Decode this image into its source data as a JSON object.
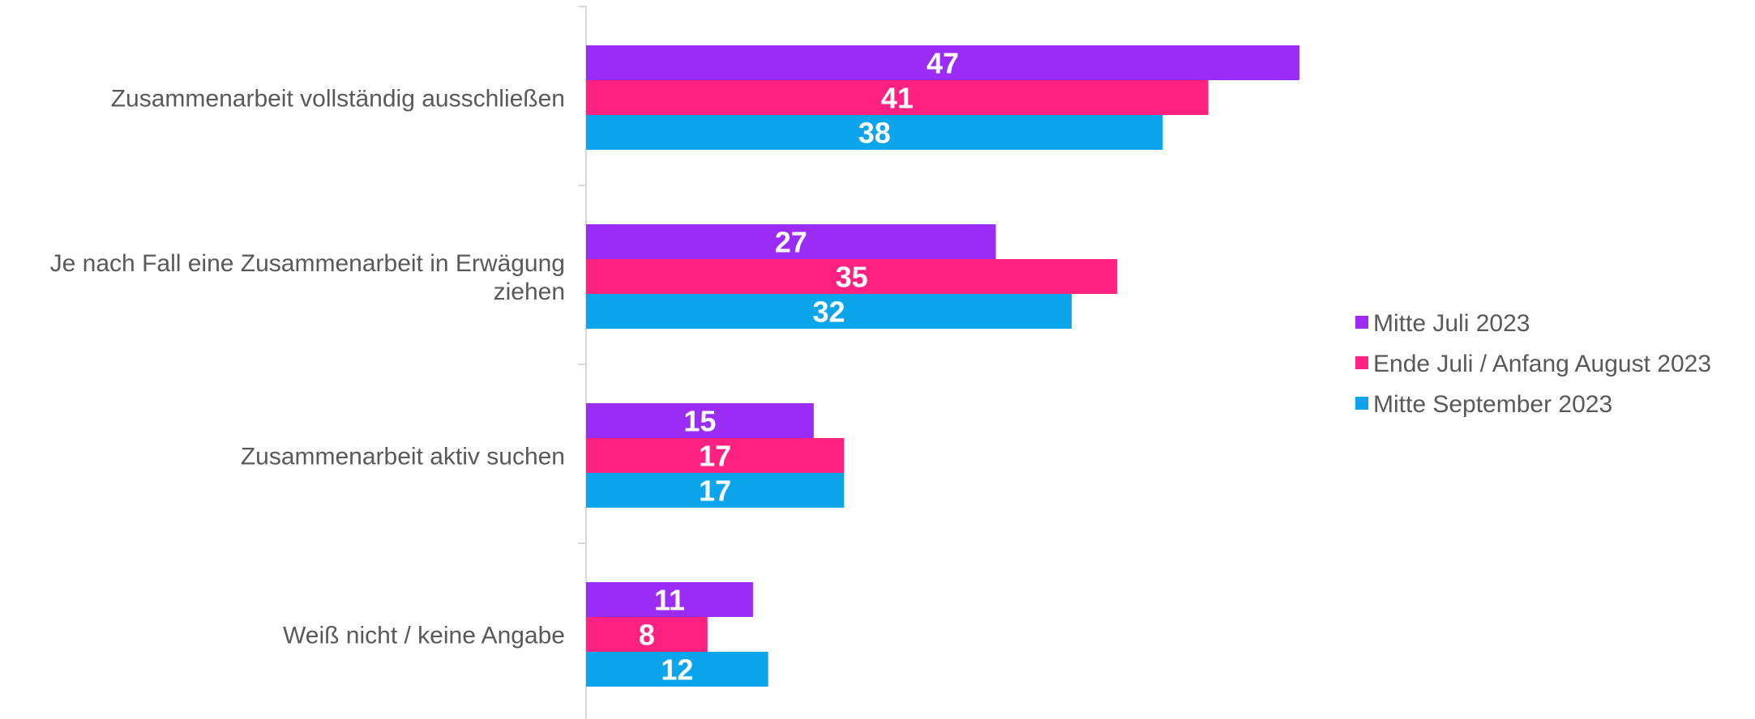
{
  "chart_data": {
    "type": "bar",
    "orientation": "horizontal",
    "categories": [
      [
        "Zusammenarbeit vollständig ausschließen"
      ],
      [
        "Je nach Fall eine Zusammenarbeit in Erwägung",
        "ziehen"
      ],
      [
        "Zusammenarbeit aktiv suchen"
      ],
      [
        "Weiß nicht / keine Angabe"
      ]
    ],
    "series": [
      {
        "name": "Mitte Juli 2023",
        "color": "#9b2cf5",
        "values": [
          47,
          27,
          15,
          11
        ]
      },
      {
        "name": "Ende Juli / Anfang August 2023",
        "color": "#ff2181",
        "values": [
          41,
          35,
          17,
          8
        ]
      },
      {
        "name": "Mitte September 2023",
        "color": "#0aa5ea",
        "values": [
          38,
          32,
          17,
          12
        ]
      }
    ],
    "title": "",
    "xlabel": "",
    "ylabel": "",
    "xlim": [
      0,
      65
    ],
    "grid": false,
    "legend_position": "right"
  }
}
